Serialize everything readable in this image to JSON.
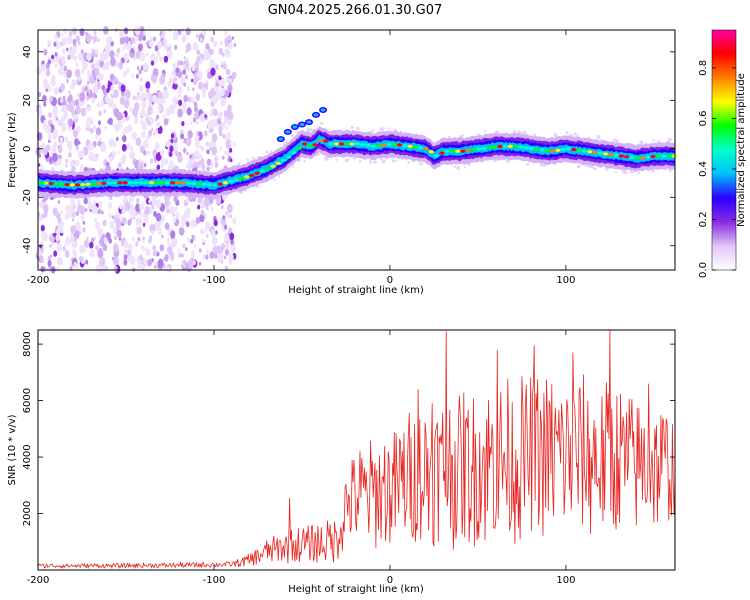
{
  "figure": {
    "title": "GN04.2025.266.01.30.G07"
  },
  "chart_data": [
    {
      "type": "heatmap",
      "name": "spectrogram",
      "xlabel": "Height of straight line (km)",
      "ylabel": "Frequency (Hz)",
      "xlim": [
        -200,
        162
      ],
      "ylim": [
        -50,
        49
      ],
      "xticks": [
        -200,
        -100,
        0,
        100
      ],
      "yticks": [
        -40,
        -20,
        0,
        20,
        40
      ],
      "noise_region_end_x": -88,
      "trace": {
        "x": [
          -200,
          -180,
          -160,
          -140,
          -120,
          -100,
          -90,
          -80,
          -70,
          -60,
          -55,
          -50,
          -45,
          -40,
          -35,
          -30,
          -20,
          -10,
          0,
          10,
          20,
          25,
          30,
          40,
          50,
          60,
          70,
          80,
          90,
          100,
          110,
          120,
          130,
          140,
          150,
          160
        ],
        "y": [
          -14,
          -15,
          -14,
          -14,
          -14,
          -15,
          -13,
          -11,
          -8,
          -4,
          -1,
          2,
          1,
          4,
          2,
          2,
          2,
          1,
          2,
          1,
          0,
          -3,
          -1,
          -1,
          0,
          1,
          1,
          0,
          -1,
          0,
          -1,
          -2,
          -3,
          -4,
          -3,
          -3
        ]
      },
      "colorbar": {
        "label": "Normalized spectral amplitude",
        "range": [
          0,
          0.95
        ],
        "ticks": [
          "0.0",
          "0.2",
          "0.4",
          "0.6",
          "0.8"
        ],
        "colormap": [
          "#ffffff",
          "#e0c6f7",
          "#8a2be2",
          "#2a00ff",
          "#00bfff",
          "#00ffcc",
          "#00ff00",
          "#ffff00",
          "#ff8000",
          "#ff0000",
          "#ff00a0"
        ]
      }
    },
    {
      "type": "line",
      "name": "snr",
      "xlabel": "Height of straight line (km)",
      "ylabel": "SNR (10 * v/v)",
      "xlim": [
        -200,
        162
      ],
      "ylim": [
        0,
        8500
      ],
      "xticks": [
        -200,
        -100,
        0,
        100
      ],
      "yticks": [
        2000,
        4000,
        6000,
        8000
      ],
      "color": "#e8231f",
      "envelope": {
        "x": [
          -200,
          -160,
          -120,
          -90,
          -80,
          -70,
          -60,
          -50,
          -40,
          -30,
          -25,
          -20,
          -10,
          0,
          10,
          20,
          30,
          40,
          50,
          60,
          70,
          80,
          90,
          100,
          110,
          120,
          130,
          140,
          150,
          160
        ],
        "base": [
          150,
          150,
          170,
          200,
          350,
          650,
          800,
          900,
          950,
          1100,
          2300,
          2600,
          2700,
          2900,
          3200,
          3400,
          3500,
          3600,
          3700,
          3800,
          3900,
          4000,
          4100,
          4100,
          4000,
          3900,
          3900,
          3800,
          3700,
          3700
        ],
        "spread": [
          80,
          80,
          90,
          100,
          250,
          450,
          600,
          700,
          800,
          900,
          1500,
          1800,
          2000,
          2200,
          2500,
          2700,
          2800,
          2900,
          3000,
          3000,
          3000,
          3000,
          3000,
          3000,
          3000,
          2900,
          2800,
          2600,
          2400,
          2200
        ]
      },
      "peaks": [
        {
          "x": -57,
          "y": 2550
        },
        {
          "x": 16,
          "y": 6400
        },
        {
          "x": 24,
          "y": 5900
        },
        {
          "x": 32,
          "y": 8450
        },
        {
          "x": 61,
          "y": 7800
        },
        {
          "x": 82,
          "y": 7950
        },
        {
          "x": 104,
          "y": 7700
        },
        {
          "x": 125,
          "y": 8500
        },
        {
          "x": 147,
          "y": 6600
        }
      ]
    }
  ]
}
